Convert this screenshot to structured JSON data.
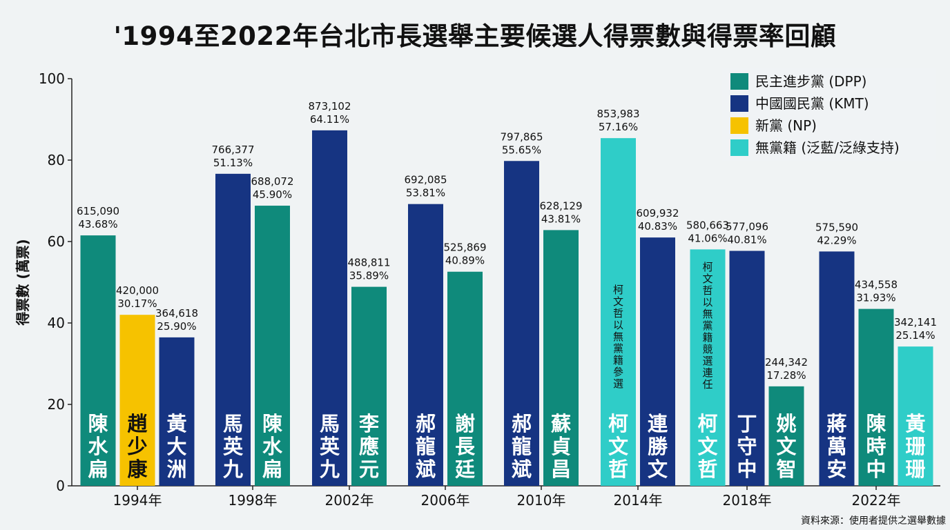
{
  "chart_data": {
    "type": "bar",
    "title": "'1994至2022年台北市長選舉主要候選人得票數與得票率回顧",
    "ylabel": "得票數 (萬票)",
    "xlabel": "",
    "ylim": [
      0,
      100
    ],
    "yticks": [
      0,
      20,
      40,
      60,
      80,
      100
    ],
    "grid": false,
    "legend_position": "top-right",
    "source": "資料來源：使用者提供之選舉數據",
    "parties": [
      {
        "key": "DPP",
        "label": "民主進步黨 (DPP)",
        "color": "#0f8a7b"
      },
      {
        "key": "KMT",
        "label": "中國國民黨 (KMT)",
        "color": "#163482"
      },
      {
        "key": "NP",
        "label": "新黨 (NP)",
        "color": "#f6c200"
      },
      {
        "key": "IND",
        "label": "無黨籍 (泛藍/泛綠支持)",
        "color": "#2fcdc8"
      }
    ],
    "categories": [
      "1994年",
      "1998年",
      "2002年",
      "2006年",
      "2010年",
      "2014年",
      "2018年",
      "2022年"
    ],
    "groups": [
      {
        "year": "1994年",
        "bars": [
          {
            "name": "陳水扁",
            "party": "DPP",
            "value": 61.509,
            "votes": "615,090",
            "pct": "43.68%"
          },
          {
            "name": "趙少康",
            "party": "NP",
            "value": 42.0,
            "votes": "420,000",
            "pct": "30.17%"
          },
          {
            "name": "黃大洲",
            "party": "KMT",
            "value": 36.4618,
            "votes": "364,618",
            "pct": "25.90%"
          }
        ]
      },
      {
        "year": "1998年",
        "bars": [
          {
            "name": "馬英九",
            "party": "KMT",
            "value": 76.6377,
            "votes": "766,377",
            "pct": "51.13%"
          },
          {
            "name": "陳水扁",
            "party": "DPP",
            "value": 68.8072,
            "votes": "688,072",
            "pct": "45.90%"
          }
        ]
      },
      {
        "year": "2002年",
        "bars": [
          {
            "name": "馬英九",
            "party": "KMT",
            "value": 87.3102,
            "votes": "873,102",
            "pct": "64.11%"
          },
          {
            "name": "李應元",
            "party": "DPP",
            "value": 48.8811,
            "votes": "488,811",
            "pct": "35.89%"
          }
        ]
      },
      {
        "year": "2006年",
        "bars": [
          {
            "name": "郝龍斌",
            "party": "KMT",
            "value": 69.2085,
            "votes": "692,085",
            "pct": "53.81%"
          },
          {
            "name": "謝長廷",
            "party": "DPP",
            "value": 52.5869,
            "votes": "525,869",
            "pct": "40.89%"
          }
        ]
      },
      {
        "year": "2010年",
        "bars": [
          {
            "name": "郝龍斌",
            "party": "KMT",
            "value": 79.7865,
            "votes": "797,865",
            "pct": "55.65%"
          },
          {
            "name": "蘇貞昌",
            "party": "DPP",
            "value": 62.8129,
            "votes": "628,129",
            "pct": "43.81%"
          }
        ]
      },
      {
        "year": "2014年",
        "bars": [
          {
            "name": "柯文哲",
            "party": "IND",
            "value": 85.3983,
            "votes": "853,983",
            "pct": "57.16%",
            "note": "柯文哲以無黨籍參選"
          },
          {
            "name": "連勝文",
            "party": "KMT",
            "value": 60.9932,
            "votes": "609,932",
            "pct": "40.83%"
          }
        ]
      },
      {
        "year": "2018年",
        "bars": [
          {
            "name": "柯文哲",
            "party": "IND",
            "value": 58.0663,
            "votes": "580,663",
            "pct": "41.06%",
            "note": "柯文哲以無黨籍競選連任"
          },
          {
            "name": "丁守中",
            "party": "KMT",
            "value": 57.7096,
            "votes": "577,096",
            "pct": "40.81%"
          },
          {
            "name": "姚文智",
            "party": "DPP",
            "value": 24.4342,
            "votes": "244,342",
            "pct": "17.28%"
          }
        ]
      },
      {
        "year": "2022年",
        "bars": [
          {
            "name": "蔣萬安",
            "party": "KMT",
            "value": 57.559,
            "votes": "575,590",
            "pct": "42.29%"
          },
          {
            "name": "陳時中",
            "party": "DPP",
            "value": 43.4558,
            "votes": "434,558",
            "pct": "31.93%"
          },
          {
            "name": "黃珊珊",
            "party": "IND",
            "value": 34.2141,
            "votes": "342,141",
            "pct": "25.14%"
          }
        ]
      }
    ]
  }
}
